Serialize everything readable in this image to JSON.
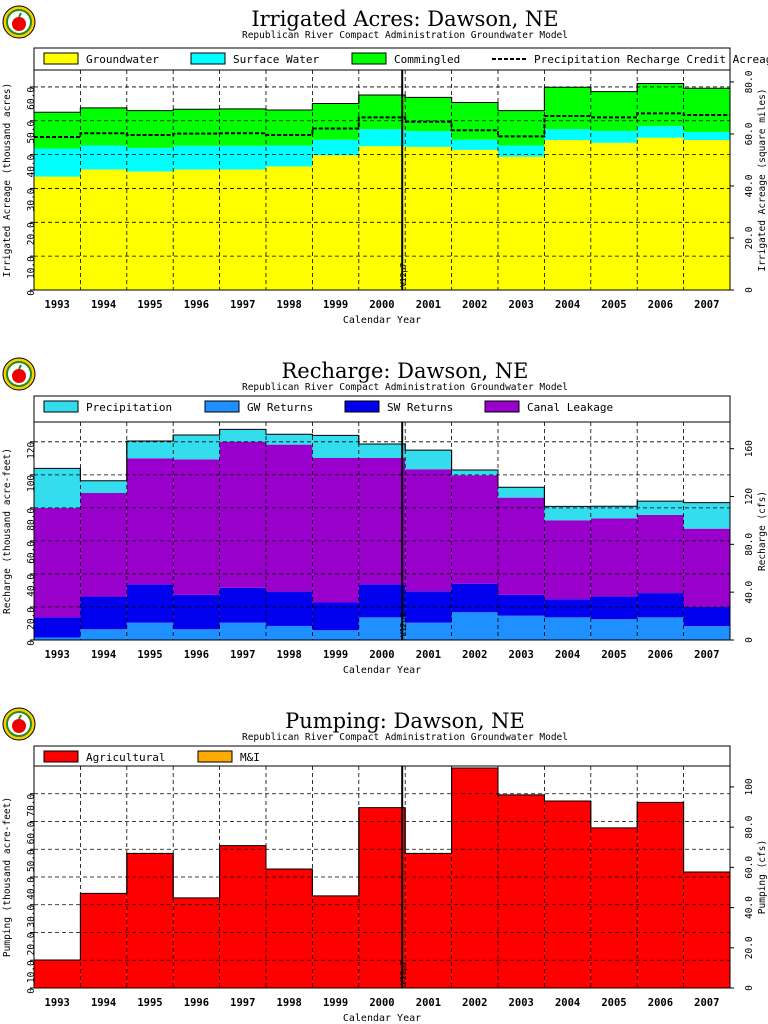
{
  "chart_data": [
    {
      "type": "area",
      "title": "Irrigated Acres: Dawson, NE",
      "subtitle": "Republican River Compact Administration Groundwater Model",
      "xlabel": "Calendar Year",
      "ylabel": "Irrigated Acreage (thousand acres)",
      "y2label": "Irrigated Acreage (square miles)",
      "categories": [
        "1993",
        "1994",
        "1995",
        "1996",
        "1997",
        "1998",
        "1999",
        "2000",
        "2001",
        "2002",
        "2003",
        "2004",
        "2005",
        "2006",
        "2007"
      ],
      "ylim": [
        0,
        65
      ],
      "yticks": [
        "0",
        "10.0",
        "20.0",
        "30.0",
        "40.0",
        "50.0",
        "60.0"
      ],
      "y2ticks": [
        "0",
        "20.0",
        "40.0",
        "60.0",
        "80.0"
      ],
      "series": [
        {
          "name": "Groundwater",
          "color": "#ffff00",
          "values": [
            33.5,
            35.6,
            35.0,
            35.6,
            35.6,
            36.5,
            39.8,
            42.5,
            42.3,
            41.4,
            39.4,
            44.3,
            43.5,
            45.0,
            44.3
          ]
        },
        {
          "name": "Surface Water",
          "color": "#00ffff",
          "values": [
            8.3,
            7.1,
            7.0,
            7.0,
            7.0,
            6.2,
            4.6,
            5.0,
            4.6,
            3.0,
            3.3,
            3.2,
            3.5,
            3.4,
            2.4
          ]
        },
        {
          "name": "Commingled",
          "color": "#00ff00",
          "values": [
            10.7,
            11.1,
            11.0,
            10.8,
            10.9,
            10.5,
            10.7,
            10.1,
            10.0,
            11.0,
            10.3,
            12.4,
            11.6,
            12.6,
            12.9
          ]
        }
      ],
      "line": {
        "name": "Precipitation Recharge Credit Acreage",
        "values": [
          45.2,
          46.3,
          45.8,
          46.2,
          46.3,
          45.8,
          47.7,
          51.0,
          49.7,
          47.2,
          45.4,
          51.4,
          51.0,
          52.2,
          51.7
        ]
      },
      "marker": {
        "label": "V12p7",
        "position": "between 2000 and 2001"
      },
      "grid": true,
      "legend": "top"
    },
    {
      "type": "area",
      "title": "Recharge: Dawson, NE",
      "subtitle": "Republican River Compact Administration Groundwater Model",
      "xlabel": "Calendar Year",
      "ylabel": "Recharge (thousand acre-feet)",
      "y2label": "Recharge (cfs)",
      "categories": [
        "1993",
        "1994",
        "1995",
        "1996",
        "1997",
        "1998",
        "1999",
        "2000",
        "2001",
        "2002",
        "2003",
        "2004",
        "2005",
        "2006",
        "2007"
      ],
      "ylim": [
        0,
        132
      ],
      "yticks": [
        "0",
        "20.0",
        "40.0",
        "60.0",
        "80.0",
        "100",
        "120"
      ],
      "y2ticks": [
        "0",
        "40.0",
        "80.0",
        "120",
        "160"
      ],
      "series": [
        {
          "name": "Precipitation",
          "color": "#33ddee",
          "values": [
            24,
            7.4,
            10.5,
            14.7,
            7.4,
            6.3,
            13.7,
            8.4,
            11.6,
            3.1,
            6.3,
            8.4,
            7.4,
            8.4,
            15.8
          ]
        },
        {
          "name": "GW Returns",
          "color": "#1e90ff",
          "values": [
            1.5,
            6.5,
            10.5,
            6.5,
            10.5,
            8.5,
            5.9,
            13.7,
            10.5,
            16.8,
            14.7,
            13.7,
            12.6,
            13.7,
            8.4
          ]
        },
        {
          "name": "SW Returns",
          "color": "#0000ee",
          "values": [
            12.2,
            19.8,
            23.2,
            20.8,
            21.1,
            20.8,
            16.8,
            20.0,
            19.0,
            17.3,
            12.6,
            11.0,
            13.7,
            14.7,
            11.6
          ]
        },
        {
          "name": "Canal Leakage",
          "color": "#9900cc",
          "values": [
            66.2,
            62.7,
            76.3,
            82.1,
            88.5,
            89.0,
            87.5,
            76.6,
            73.9,
            65.7,
            58.9,
            47.8,
            47.3,
            47.3,
            47.4
          ]
        }
      ],
      "marker": {
        "label": "V12p7",
        "position": "between 2000 and 2001"
      },
      "grid": true,
      "legend": "top"
    },
    {
      "type": "bar",
      "title": "Pumping: Dawson, NE",
      "subtitle": "Republican River Compact Administration Groundwater Model",
      "xlabel": "Calendar Year",
      "ylabel": "Pumping (thousand acre-feet)",
      "y2label": "Pumping (cfs)",
      "categories": [
        "1993",
        "1994",
        "1995",
        "1996",
        "1997",
        "1998",
        "1999",
        "2000",
        "2001",
        "2002",
        "2003",
        "2004",
        "2005",
        "2006",
        "2007"
      ],
      "ylim": [
        0,
        80
      ],
      "yticks": [
        "0",
        "10.0",
        "20.0",
        "30.0",
        "40.0",
        "50.0",
        "60.0",
        "70.0"
      ],
      "y2ticks": [
        "0",
        "20.0",
        "40.0",
        "60.0",
        "80.0",
        "100"
      ],
      "series": [
        {
          "name": "Agricultural",
          "color": "#ff0000",
          "values": [
            10.1,
            34.1,
            48.5,
            32.5,
            51.3,
            42.9,
            33.2,
            65.0,
            48.5,
            79.3,
            69.6,
            67.4,
            57.7,
            66.9,
            41.8
          ]
        },
        {
          "name": "M&I",
          "color": "#ffaa00",
          "values": [
            0,
            0,
            0,
            0,
            0,
            0,
            0,
            0,
            0,
            0,
            0,
            0,
            0,
            0,
            0
          ]
        }
      ],
      "marker": {
        "label": "V12p7",
        "position": "between 2000 and 2001"
      },
      "grid": true,
      "legend": "top"
    }
  ]
}
